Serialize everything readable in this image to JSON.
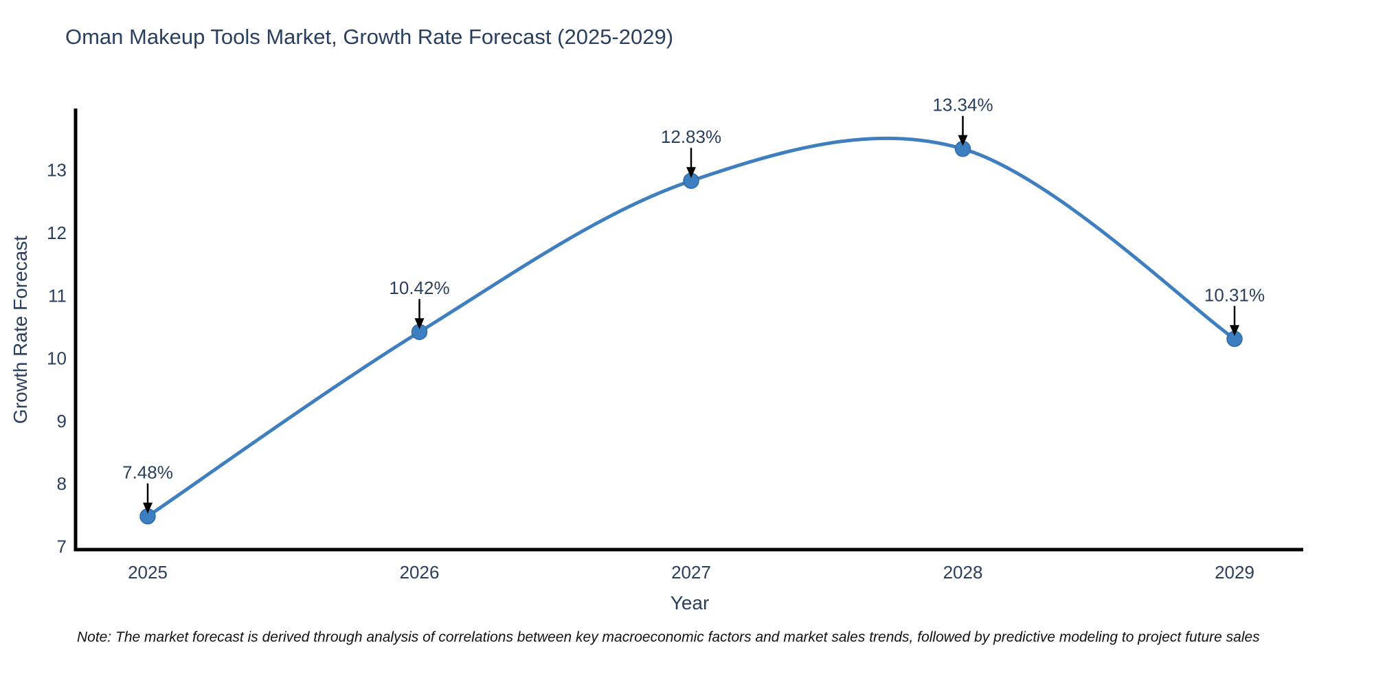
{
  "title": "Oman Makeup Tools Market, Growth Rate Forecast (2025-2029)",
  "note": "Note: The market forecast is derived through analysis of correlations between key macroeconomic factors and market sales trends, followed by predictive modeling to project future sales",
  "chart_data": {
    "type": "line",
    "title": "Oman Makeup Tools Market, Growth Rate Forecast (2025-2029)",
    "xlabel": "Year",
    "ylabel": "Growth Rate Forecast",
    "categories": [
      "2025",
      "2026",
      "2027",
      "2028",
      "2029"
    ],
    "x": [
      2025,
      2026,
      2027,
      2028,
      2029
    ],
    "values": [
      7.48,
      10.42,
      12.83,
      13.34,
      10.31
    ],
    "point_labels": [
      "7.48%",
      "10.42%",
      "12.83%",
      "13.34%",
      "10.31%"
    ],
    "yticks": [
      7,
      8,
      9,
      10,
      11,
      12,
      13
    ],
    "ylim": [
      6.95,
      13.95
    ],
    "line_shape": "spline",
    "grid": false,
    "legend": "none",
    "colors": {
      "line": "#3f7fbf",
      "marker": "#3c7ebf",
      "marker_edge": "#2f6ba8",
      "annotation": "#2a3f5f",
      "arrow": "#000000",
      "axis_line": "#000000",
      "tick_text": "#2a3f5f",
      "title_text": "#2a3f5f",
      "note_text": "#111111"
    }
  }
}
